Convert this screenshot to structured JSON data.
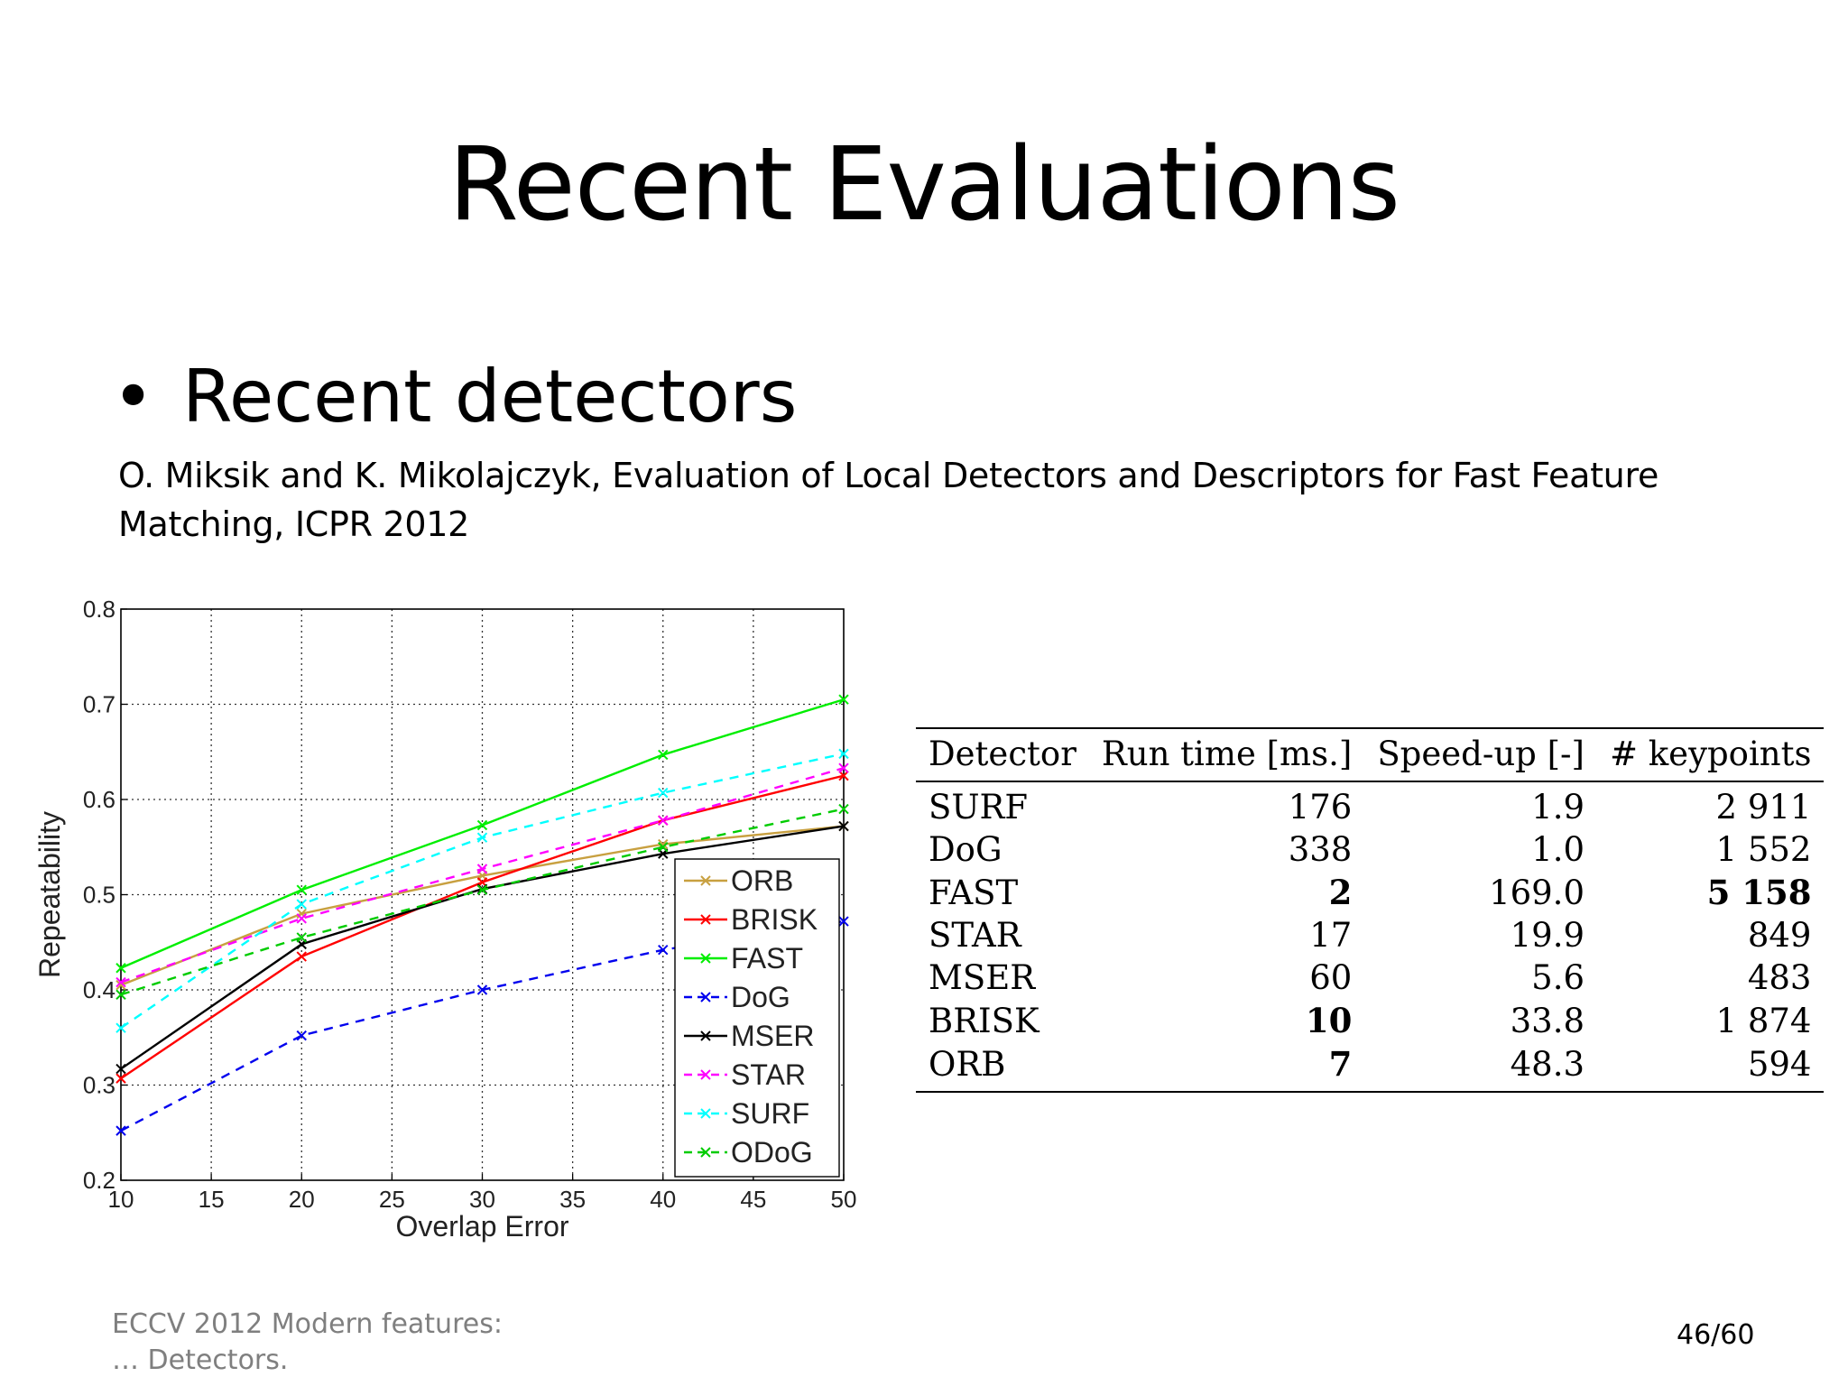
{
  "slide": {
    "title": "Recent Evaluations",
    "bullet": "Recent detectors",
    "citation": "O. Miksik and K. Mikolajczyk, Evaluation of Local Detectors and Descriptors for Fast Feature Matching, ICPR 2012",
    "footer_line1": "ECCV 2012  Modern features:",
    "footer_line2": "… Detectors.",
    "page": "46/60"
  },
  "chart_data": {
    "type": "line",
    "title": "",
    "xlabel": "Overlap Error",
    "ylabel": "Repeatability",
    "x": [
      10,
      20,
      30,
      40,
      50
    ],
    "xlim": [
      10,
      50
    ],
    "ylim": [
      0.2,
      0.8
    ],
    "xticks": [
      "10",
      "15",
      "20",
      "25",
      "30",
      "35",
      "40",
      "45",
      "50"
    ],
    "yticks": [
      "0.2",
      "0.3",
      "0.4",
      "0.5",
      "0.6",
      "0.7",
      "0.8"
    ],
    "grid": true,
    "legend_position": "lower-right",
    "series": [
      {
        "name": "ORB",
        "color": "#c8a040",
        "dash": false,
        "values": [
          0.405,
          0.48,
          0.52,
          0.553,
          0.572
        ]
      },
      {
        "name": "BRISK",
        "color": "#ff0000",
        "dash": false,
        "values": [
          0.307,
          0.435,
          0.513,
          0.578,
          0.625
        ]
      },
      {
        "name": "FAST",
        "color": "#00ee00",
        "dash": false,
        "values": [
          0.423,
          0.505,
          0.573,
          0.647,
          0.705
        ]
      },
      {
        "name": "DoG",
        "color": "#0000ee",
        "dash": true,
        "values": [
          0.252,
          0.352,
          0.4,
          0.442,
          0.472
        ]
      },
      {
        "name": "MSER",
        "color": "#000000",
        "dash": false,
        "values": [
          0.317,
          0.448,
          0.506,
          0.543,
          0.572
        ]
      },
      {
        "name": "STAR",
        "color": "#ff00ff",
        "dash": true,
        "values": [
          0.408,
          0.475,
          0.527,
          0.578,
          0.633
        ]
      },
      {
        "name": "SURF",
        "color": "#00ffff",
        "dash": true,
        "values": [
          0.36,
          0.49,
          0.56,
          0.607,
          0.648
        ]
      },
      {
        "name": "ODoG",
        "color": "#00cc00",
        "dash": true,
        "values": [
          0.395,
          0.455,
          0.505,
          0.55,
          0.59
        ]
      }
    ]
  },
  "table": {
    "headers": [
      "Detector",
      "Run time [ms.]",
      "Speed-up [-]",
      "# keypoints"
    ],
    "rows": [
      {
        "cells": [
          "SURF",
          "176",
          "1.9",
          "2 911"
        ],
        "bold": [
          false,
          false,
          false,
          false
        ]
      },
      {
        "cells": [
          "DoG",
          "338",
          "1.0",
          "1 552"
        ],
        "bold": [
          false,
          false,
          false,
          false
        ]
      },
      {
        "cells": [
          "FAST",
          "2",
          "169.0",
          "5 158"
        ],
        "bold": [
          false,
          true,
          false,
          true
        ]
      },
      {
        "cells": [
          "STAR",
          "17",
          "19.9",
          "849"
        ],
        "bold": [
          false,
          false,
          false,
          false
        ]
      },
      {
        "cells": [
          "MSER",
          "60",
          "5.6",
          "483"
        ],
        "bold": [
          false,
          false,
          false,
          false
        ]
      },
      {
        "cells": [
          "BRISK",
          "10",
          "33.8",
          "1 874"
        ],
        "bold": [
          false,
          true,
          false,
          false
        ]
      },
      {
        "cells": [
          "ORB",
          "7",
          "48.3",
          "594"
        ],
        "bold": [
          false,
          true,
          false,
          false
        ]
      }
    ]
  }
}
